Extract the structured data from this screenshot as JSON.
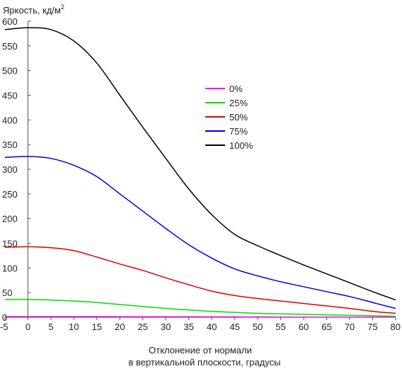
{
  "chart_data": {
    "type": "line",
    "ylabel": "Яркость, кд/м",
    "ylabel_sup": "2",
    "xlabel_line1": "Отклонение от нормали",
    "xlabel_line2": "в вертикальной плоскости, градусы",
    "xlim": [
      -5,
      80
    ],
    "ylim": [
      0,
      600
    ],
    "x_ticks": [
      -5,
      0,
      5,
      10,
      15,
      20,
      25,
      30,
      35,
      40,
      45,
      50,
      55,
      60,
      65,
      70,
      75,
      80
    ],
    "y_ticks": [
      0,
      50,
      100,
      150,
      200,
      250,
      300,
      350,
      400,
      450,
      500,
      550,
      600
    ],
    "grid": false,
    "legend_position": "center-right",
    "series": [
      {
        "name": "0%",
        "color": "#ff00ff",
        "x": [
          -5,
          0,
          5,
          10,
          15,
          20,
          25,
          30,
          35,
          40,
          45,
          50,
          55,
          60,
          65,
          70,
          75,
          80
        ],
        "y": [
          1.5,
          1.5,
          1.5,
          1.5,
          1.4,
          1.3,
          1.2,
          1.1,
          1.0,
          0.9,
          0.8,
          0.7,
          0.6,
          0.5,
          0.4,
          0.35,
          0.3,
          0.25
        ]
      },
      {
        "name": "25%",
        "color": "#00dd00",
        "x": [
          -5,
          0,
          5,
          10,
          15,
          20,
          25,
          30,
          35,
          40,
          45,
          50,
          55,
          60,
          65,
          70,
          75,
          80
        ],
        "y": [
          36,
          36,
          35,
          33,
          30,
          26,
          22,
          18,
          15,
          12,
          10,
          8,
          7,
          6,
          5,
          4,
          3,
          2
        ]
      },
      {
        "name": "50%",
        "color": "#dd0000",
        "x": [
          -5,
          0,
          5,
          10,
          15,
          20,
          25,
          30,
          35,
          40,
          45,
          50,
          55,
          60,
          65,
          70,
          75,
          80
        ],
        "y": [
          142,
          143,
          141,
          135,
          122,
          108,
          95,
          80,
          66,
          53,
          44,
          38,
          33,
          28,
          23,
          18,
          12,
          8
        ]
      },
      {
        "name": "75%",
        "color": "#0000dd",
        "x": [
          -5,
          0,
          5,
          10,
          15,
          20,
          25,
          30,
          35,
          40,
          45,
          50,
          55,
          60,
          65,
          70,
          75,
          80
        ],
        "y": [
          324,
          326,
          322,
          308,
          285,
          250,
          215,
          180,
          147,
          120,
          98,
          84,
          72,
          62,
          52,
          42,
          30,
          18
        ]
      },
      {
        "name": "100%",
        "color": "#000000",
        "x": [
          -5,
          0,
          5,
          10,
          15,
          20,
          25,
          30,
          35,
          40,
          45,
          50,
          55,
          60,
          65,
          70,
          75,
          80
        ],
        "y": [
          583,
          587,
          583,
          560,
          515,
          450,
          385,
          322,
          260,
          208,
          168,
          145,
          125,
          106,
          88,
          70,
          52,
          35
        ]
      }
    ]
  }
}
